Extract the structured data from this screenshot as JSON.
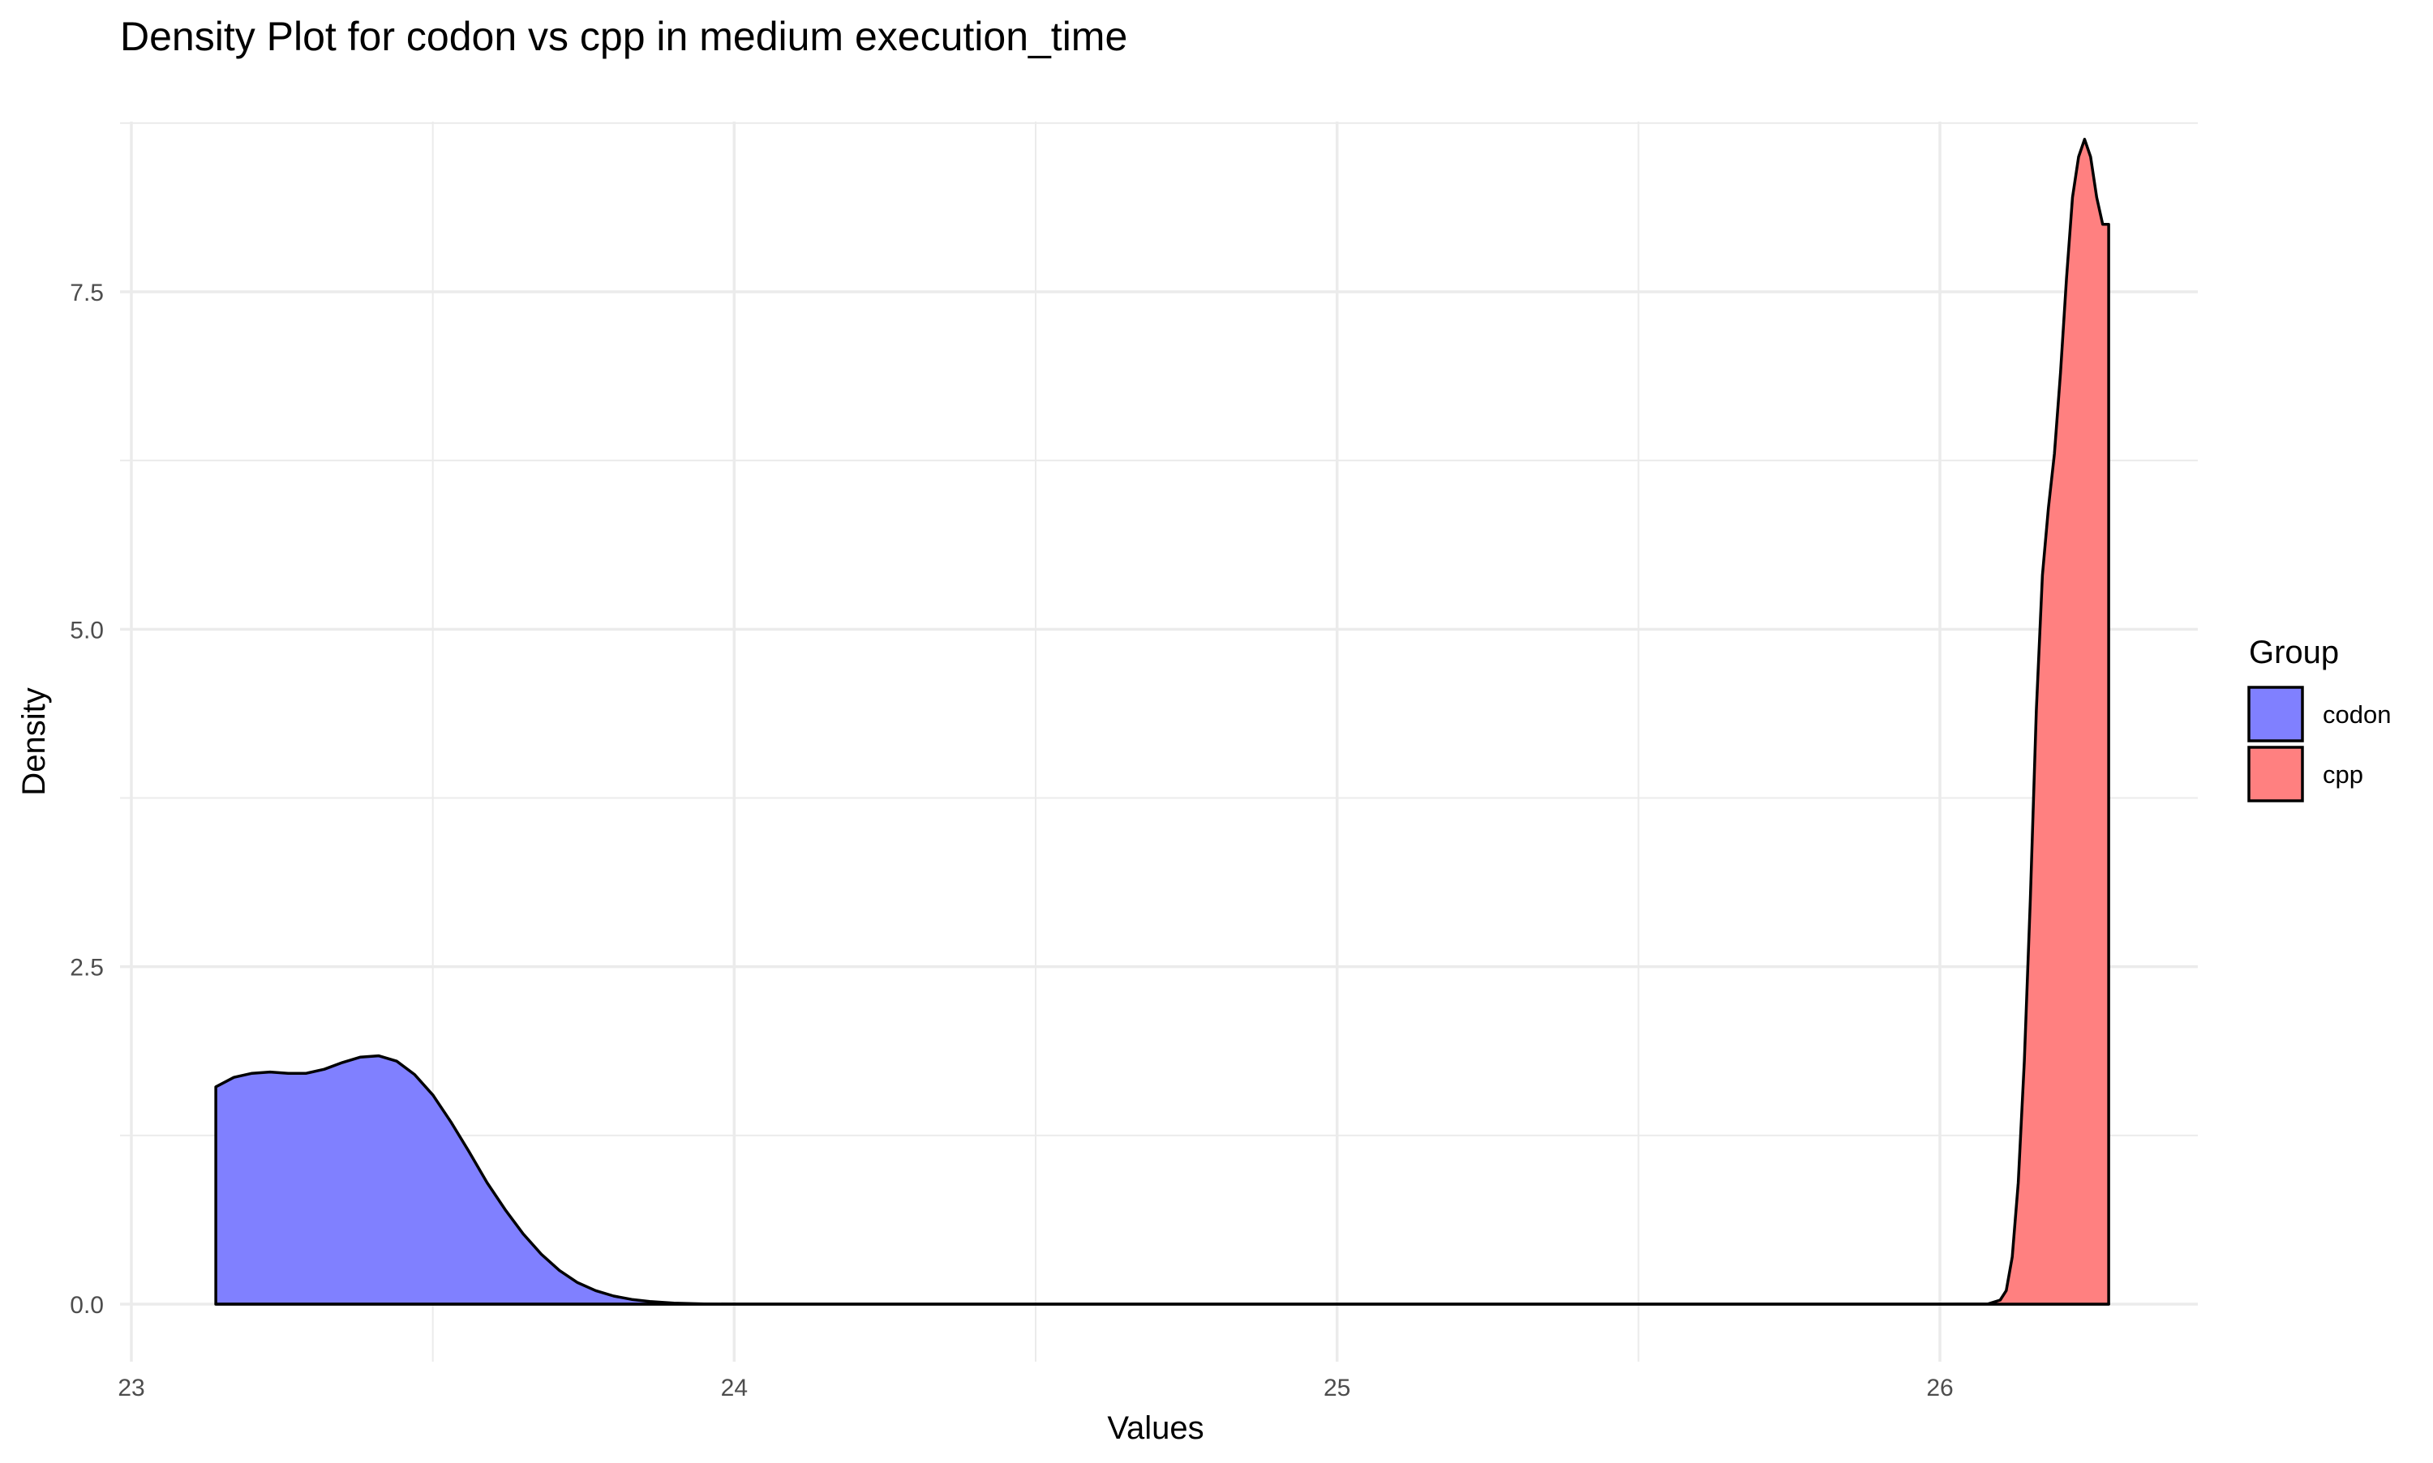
{
  "chart_data": {
    "type": "area",
    "title": "Density Plot for codon vs cpp in medium execution_time",
    "xlabel": "Values",
    "ylabel": "Density",
    "xlim": [
      23,
      26.4
    ],
    "ylim": [
      0,
      8.7
    ],
    "x_ticks": [
      23,
      24,
      25,
      26
    ],
    "x_tick_labels": [
      "23",
      "24",
      "25",
      "26"
    ],
    "y_ticks": [
      0,
      2.5,
      5,
      7.5
    ],
    "y_tick_labels": [
      "0.0",
      "2.5",
      "5.0",
      "7.5"
    ],
    "grid": true,
    "legend": {
      "title": "Group",
      "position": "right",
      "items": [
        {
          "label": "codon",
          "color": "#8080ff"
        },
        {
          "label": "cpp",
          "color": "#ff8080"
        }
      ]
    },
    "series": [
      {
        "name": "codon",
        "color": "#8080ff",
        "x": [
          23.14,
          23.17,
          23.2,
          23.23,
          23.26,
          23.29,
          23.32,
          23.35,
          23.38,
          23.41,
          23.44,
          23.47,
          23.5,
          23.53,
          23.56,
          23.59,
          23.62,
          23.65,
          23.68,
          23.71,
          23.74,
          23.77,
          23.8,
          23.83,
          23.86,
          23.9,
          23.95,
          24.0,
          24.2,
          24.5,
          25.0,
          25.5,
          26.0,
          26.28
        ],
        "y": [
          1.61,
          1.68,
          1.71,
          1.72,
          1.71,
          1.71,
          1.74,
          1.79,
          1.83,
          1.84,
          1.8,
          1.7,
          1.55,
          1.35,
          1.13,
          0.9,
          0.7,
          0.52,
          0.37,
          0.25,
          0.16,
          0.1,
          0.06,
          0.035,
          0.02,
          0.008,
          0.002,
          0.0005,
          0,
          0,
          0,
          0,
          0,
          0
        ]
      },
      {
        "name": "cpp",
        "color": "#ff8080",
        "x": [
          23.14,
          24.0,
          25.0,
          26.0,
          26.08,
          26.1,
          26.11,
          26.12,
          26.13,
          26.14,
          26.15,
          26.16,
          26.17,
          26.18,
          26.19,
          26.2,
          26.21,
          26.22,
          26.23,
          26.24,
          26.25,
          26.26,
          26.27,
          26.28
        ],
        "y": [
          0,
          0,
          0,
          0,
          0.002,
          0.03,
          0.1,
          0.35,
          0.9,
          1.8,
          3.0,
          4.4,
          5.4,
          5.9,
          6.3,
          6.9,
          7.6,
          8.2,
          8.5,
          8.63,
          8.5,
          8.2,
          8.0,
          8.0
        ]
      }
    ]
  }
}
